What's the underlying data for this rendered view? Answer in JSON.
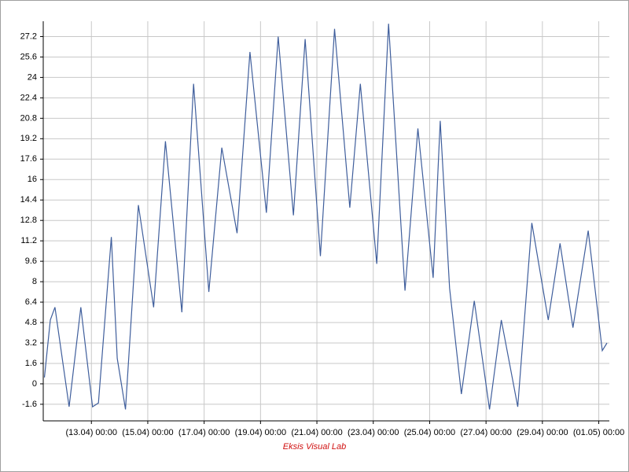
{
  "chart_data": {
    "type": "line",
    "credit": "Eksis Visual Lab",
    "x": [
      "11.04 08:00",
      "11.04 13:00",
      "11.04 17:00",
      "12.04 05:00",
      "12.04 15:00",
      "13.04 01:00",
      "13.04 06:00",
      "13.04 17:00",
      "13.04 22:00",
      "14.04 05:00",
      "14.04 16:00",
      "15.04 05:00",
      "15.04 15:00",
      "16.04 05:00",
      "16.04 15:00",
      "17.04 04:00",
      "17.04 15:00",
      "18.04 04:00",
      "18.04 15:00",
      "19.04 05:00",
      "19.04 15:00",
      "20.04 04:00",
      "20.04 14:00",
      "21.04 03:00",
      "21.04 15:00",
      "22.04 04:00",
      "22.04 13:00",
      "23.04 03:00",
      "23.04 13:00",
      "24.04 03:00",
      "24.04 14:00",
      "25.04 03:00",
      "25.04 09:00",
      "25.04 17:00",
      "26.04 03:00",
      "26.04 14:00",
      "27.04 03:00",
      "27.04 13:00",
      "28.04 03:00",
      "28.04 15:00",
      "29.04 05:00",
      "29.04 15:00",
      "30.04 02:00",
      "30.04 15:00",
      "01.05 03:00",
      "01.05 07:00"
    ],
    "series": [
      {
        "color": "#3f5e9c",
        "values": [
          0.5,
          5,
          6,
          -1.8,
          6,
          -1.8,
          -1.5,
          11.5,
          2,
          -2,
          14,
          6,
          19,
          5.6,
          23.5,
          7.2,
          18.5,
          11.8,
          26,
          13.4,
          27.2,
          13.2,
          27,
          10,
          27.8,
          13.8,
          23.5,
          9.4,
          28.2,
          7.3,
          20,
          8.3,
          20.6,
          7.5,
          -0.8,
          6.5,
          -2,
          5,
          -1.8,
          12.6,
          5,
          11,
          4.4,
          12,
          2.6,
          3.2
        ]
      }
    ],
    "xlim": [
      "11.04 07:00",
      "01.05 09:00"
    ],
    "xticks": [
      "(13.04) 00:00",
      "(15.04) 00:00",
      "(17.04) 00:00",
      "(19.04) 00:00",
      "(21.04) 00:00",
      "(23.04) 00:00",
      "(25.04) 00:00",
      "(27.04) 00:00",
      "(29.04) 00:00",
      "(01.05) 00:00"
    ],
    "ylim": [
      -2.9,
      28.4
    ],
    "yticks": [
      -1.6,
      0,
      1.6,
      3.2,
      4.8,
      6.4,
      8,
      9.6,
      11.2,
      12.8,
      14.4,
      16,
      17.6,
      19.2,
      20.8,
      22.4,
      24,
      25.6,
      27.2
    ],
    "grid": true
  }
}
